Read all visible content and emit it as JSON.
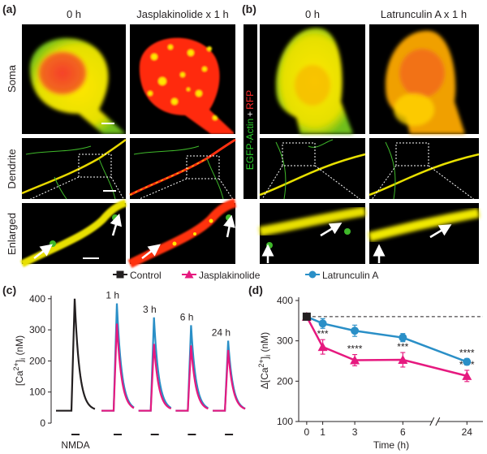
{
  "panels": {
    "a": "(a)",
    "b": "(b)",
    "c": "(c)",
    "d": "(d)"
  },
  "images": {
    "a": {
      "columns": [
        "0 h",
        "Jasplakinolide x 1 h"
      ]
    },
    "b": {
      "columns": [
        "0 h",
        "Latrunculin A x 1 h"
      ]
    },
    "rows": [
      "Soma",
      "Dendrite",
      "Enlarged"
    ],
    "stain": [
      "EGFP-Actin",
      "+",
      "RFP"
    ]
  },
  "chart_data": [
    {
      "type": "trace",
      "categories": [
        null,
        "1 h",
        "3 h",
        "6 h",
        "24 h"
      ],
      "stimulus": "NMDA",
      "baseline": 40,
      "ylabel": {
        "open": "[Ca",
        "sup": "2+",
        "close": "]",
        "sub": "i",
        "unit": " (nM)"
      },
      "ylim": [
        0,
        410
      ],
      "yticks": [
        0,
        100,
        200,
        300,
        400
      ],
      "series": [
        {
          "name": "Control",
          "color": "#231f20",
          "marker": "square",
          "values": [
            400,
            null,
            null,
            null,
            null
          ]
        },
        {
          "name": "Jasplakinolide",
          "color": "#e6197f",
          "marker": "triangle",
          "values": [
            null,
            320,
            255,
            250,
            235
          ]
        },
        {
          "name": "Latrunculin A",
          "color": "#2a8fc7",
          "marker": "circle",
          "values": [
            null,
            385,
            340,
            315,
            265
          ]
        }
      ]
    },
    {
      "type": "line",
      "x": [
        0,
        1,
        3,
        6,
        24
      ],
      "xlim": [
        -0.5,
        25
      ],
      "xbreak": [
        8,
        22
      ],
      "xticks": [
        0,
        1,
        3,
        6,
        24
      ],
      "ylim": [
        100,
        400
      ],
      "yticks": [
        100,
        200,
        300,
        400
      ],
      "xlabel": "Time (h)",
      "ylabel": {
        "open": "Δ[Ca",
        "sup": "2+",
        "close": "]",
        "sub": "i",
        "unit": " (nM)"
      },
      "reference": 360,
      "series": [
        {
          "color": "#231f20",
          "marker": "square",
          "values": [
            360,
            null,
            null,
            null,
            null
          ]
        },
        {
          "color": "#e6197f",
          "marker": "triangle",
          "values": [
            360,
            285,
            252,
            253,
            213
          ],
          "errors": [
            null,
            18,
            14,
            18,
            14
          ],
          "significance": [
            null,
            "***",
            "****",
            "***",
            "****"
          ]
        },
        {
          "color": "#2a8fc7",
          "marker": "circle",
          "values": [
            360,
            343,
            325,
            308,
            248
          ],
          "errors": [
            null,
            12,
            14,
            10,
            8
          ],
          "significance": [
            null,
            null,
            null,
            null,
            "****"
          ]
        }
      ]
    }
  ]
}
